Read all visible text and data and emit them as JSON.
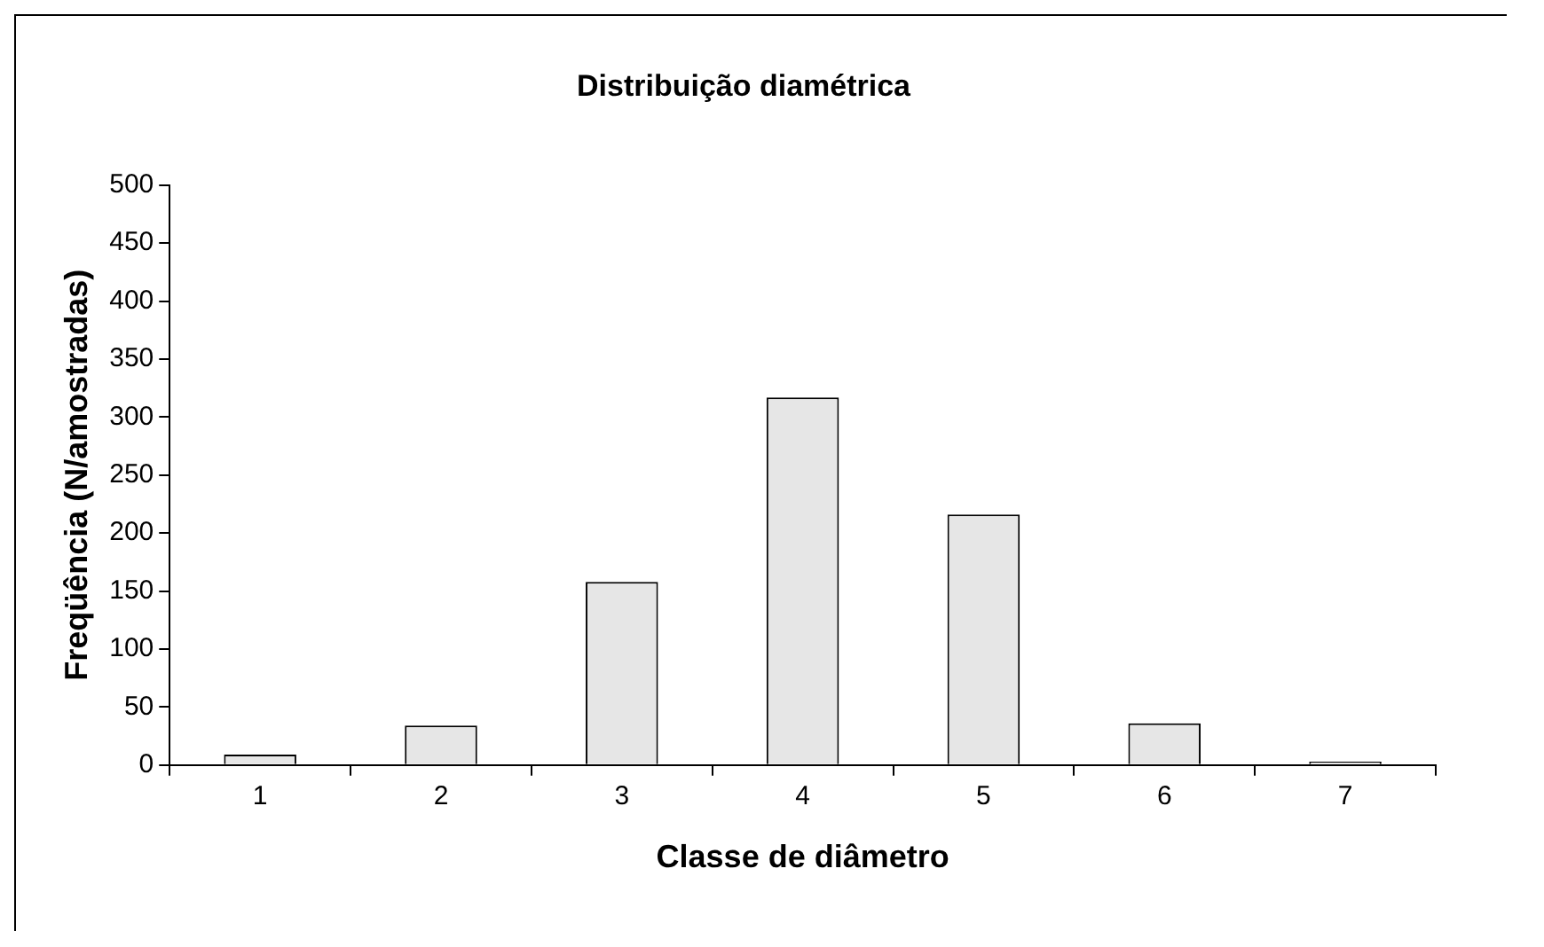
{
  "chart_data": {
    "type": "bar",
    "title": "Distribuição diamétrica",
    "xlabel": "Classe de diâmetro",
    "ylabel": "Freqüência (N/amostradas)",
    "categories": [
      "1",
      "2",
      "3",
      "4",
      "5",
      "6",
      "7"
    ],
    "values": [
      9,
      34,
      158,
      317,
      216,
      36,
      3
    ],
    "color": "#e6e6e6",
    "ylim": [
      0,
      500
    ],
    "yticks": [
      0,
      50,
      100,
      150,
      200,
      250,
      300,
      350,
      400,
      450,
      500
    ],
    "grid": false,
    "legend": false
  }
}
